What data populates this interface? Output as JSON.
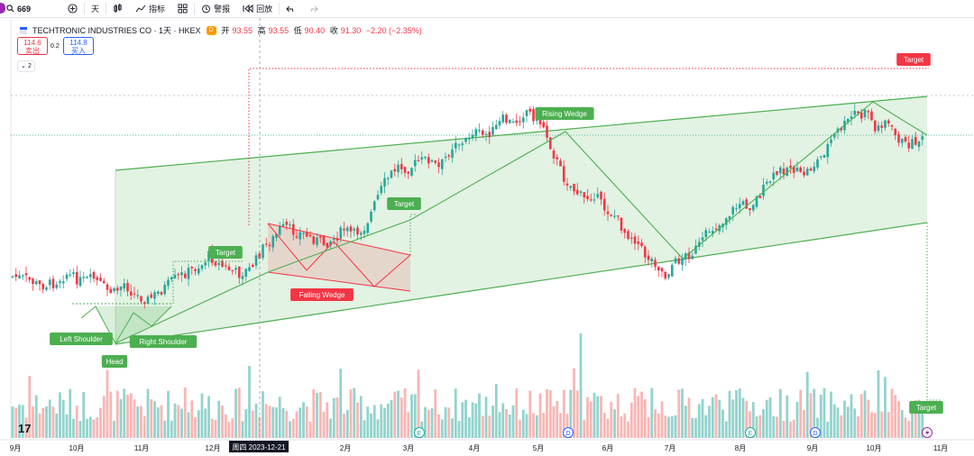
{
  "toolbar": {
    "symbol": "669",
    "interval": "天",
    "indicators_label": "指标",
    "alerts_label": "警报",
    "replay_label": "回放"
  },
  "legend": {
    "title": "TECHTRONIC INDUSTRIES CO · 1天 · HKEX",
    "badge": "D",
    "open_label": "开",
    "open": "93.55",
    "high_label": "高",
    "high": "93.55",
    "low_label": "低",
    "low": "90.40",
    "close_label": "收",
    "close": "91.30",
    "change": "−2.20 (−2.35%)"
  },
  "quote": {
    "sell_price": "114.6",
    "sell_label": "卖出",
    "spread": "0.2",
    "buy_price": "114.8",
    "buy_label": "买入",
    "collapse_count": "2"
  },
  "colors": {
    "up": "#26a69a",
    "down": "#f23645",
    "pattern_green": "#4caf50",
    "pattern_red": "#f23645",
    "up_volume": "#80cbc4",
    "down_volume": "#f7a9a7"
  },
  "chart_data": {
    "type": "candlestick",
    "symbol": "TECHTRONIC INDUSTRIES CO",
    "exchange": "HKEX",
    "interval": "1天",
    "x_tick_labels": [
      "9月",
      "10月",
      "11月",
      "12月",
      "2023-12-21",
      "2月",
      "3月",
      "4月",
      "5月",
      "6月",
      "7月",
      "8月",
      "9月",
      "10月",
      "11月"
    ],
    "crosshair_date_label": "周四 2023-12-21",
    "last_ohlc": {
      "open": 93.55,
      "high": 93.55,
      "low": 90.4,
      "close": 91.3,
      "change": -2.2,
      "change_pct": -2.35
    },
    "close_path": [
      [
        0,
        0.71
      ],
      [
        4,
        0.72
      ],
      [
        8,
        0.75
      ],
      [
        12,
        0.74
      ],
      [
        16,
        0.7
      ],
      [
        20,
        0.73
      ],
      [
        24,
        0.72
      ],
      [
        28,
        0.77
      ],
      [
        30,
        0.78
      ],
      [
        33,
        0.74
      ],
      [
        36,
        0.79
      ],
      [
        40,
        0.81
      ],
      [
        44,
        0.77
      ],
      [
        48,
        0.72
      ],
      [
        52,
        0.69
      ],
      [
        56,
        0.66
      ],
      [
        58,
        0.62
      ],
      [
        61,
        0.66
      ],
      [
        64,
        0.68
      ],
      [
        67,
        0.7
      ],
      [
        70,
        0.68
      ],
      [
        72,
        0.64
      ],
      [
        74,
        0.59
      ],
      [
        77,
        0.55
      ],
      [
        79,
        0.51
      ],
      [
        81,
        0.5
      ],
      [
        83,
        0.52
      ],
      [
        86,
        0.53
      ],
      [
        89,
        0.55
      ],
      [
        92,
        0.57
      ],
      [
        95,
        0.55
      ],
      [
        98,
        0.51
      ],
      [
        101,
        0.53
      ],
      [
        104,
        0.5
      ],
      [
        106,
        0.44
      ],
      [
        108,
        0.37
      ],
      [
        110,
        0.31
      ],
      [
        112,
        0.27
      ],
      [
        114,
        0.24
      ],
      [
        117,
        0.25
      ],
      [
        120,
        0.22
      ],
      [
        123,
        0.21
      ],
      [
        126,
        0.25
      ],
      [
        129,
        0.18
      ],
      [
        131,
        0.13
      ],
      [
        133,
        0.15
      ],
      [
        136,
        0.09
      ],
      [
        139,
        0.11
      ],
      [
        142,
        0.09
      ],
      [
        145,
        0.04
      ],
      [
        148,
        0.06
      ],
      [
        150,
        0.03
      ],
      [
        152,
        0.0
      ],
      [
        155,
        0.04
      ],
      [
        157,
        0.07
      ],
      [
        160,
        0.19
      ],
      [
        163,
        0.29
      ],
      [
        166,
        0.34
      ],
      [
        169,
        0.38
      ],
      [
        172,
        0.36
      ],
      [
        175,
        0.42
      ],
      [
        178,
        0.45
      ],
      [
        181,
        0.52
      ],
      [
        184,
        0.55
      ],
      [
        187,
        0.62
      ],
      [
        190,
        0.65
      ],
      [
        193,
        0.71
      ],
      [
        195,
        0.66
      ],
      [
        198,
        0.63
      ],
      [
        201,
        0.61
      ],
      [
        204,
        0.56
      ],
      [
        206,
        0.51
      ],
      [
        209,
        0.49
      ],
      [
        212,
        0.44
      ],
      [
        215,
        0.4
      ],
      [
        218,
        0.41
      ],
      [
        221,
        0.36
      ],
      [
        224,
        0.3
      ],
      [
        227,
        0.26
      ],
      [
        230,
        0.24
      ],
      [
        233,
        0.28
      ],
      [
        236,
        0.25
      ],
      [
        239,
        0.2
      ],
      [
        242,
        0.13
      ],
      [
        244,
        0.09
      ],
      [
        247,
        0.05
      ],
      [
        249,
        0.01
      ],
      [
        251,
        0.03
      ],
      [
        253,
        0.0
      ],
      [
        255,
        0.09
      ],
      [
        258,
        0.04
      ],
      [
        261,
        0.11
      ],
      [
        264,
        0.15
      ],
      [
        268,
        0.13
      ]
    ],
    "patterns": [
      {
        "name": "Head and Shoulders",
        "labels": [
          "Left Shoulder",
          "Head",
          "Right Shoulder",
          "Target"
        ],
        "color": "green"
      },
      {
        "name": "Falling Wedge",
        "labels": [
          "Falling Wedge",
          "Target"
        ],
        "color": "red"
      },
      {
        "name": "Rising Wedge",
        "labels": [
          "Rising Wedge",
          "Target"
        ],
        "color": "green"
      },
      {
        "name": "Target (projected)",
        "labels": [
          "Target"
        ],
        "color": "red"
      }
    ],
    "event_markers": [
      {
        "symbol": "E",
        "date_label": "3月"
      },
      {
        "symbol": "D",
        "date_label": "5月"
      },
      {
        "symbol": "E",
        "date_label": "8月"
      },
      {
        "symbol": "D",
        "date_label": "9月"
      }
    ],
    "series": [
      {
        "name": "price",
        "kind": "candlestick"
      },
      {
        "name": "volume",
        "kind": "histogram"
      }
    ]
  },
  "labels": {
    "left_shoulder": "Left Shoulder",
    "head": "Head",
    "right_shoulder": "Right Shoulder",
    "target_hs": "Target",
    "falling_wedge": "Falling Wedge",
    "target_fw": "Target",
    "rising_wedge": "Rising Wedge",
    "target_top": "Target",
    "target_bottom": "Target",
    "crosshair_date": "周四 2023-12-21",
    "event_e": "E",
    "event_d": "D",
    "tv_logo": "17"
  }
}
